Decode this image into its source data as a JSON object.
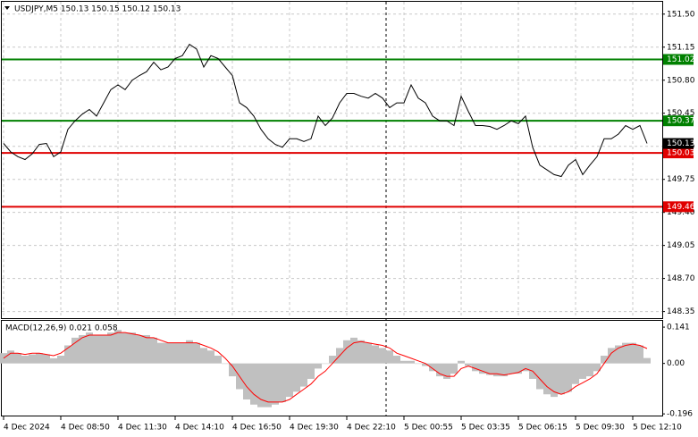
{
  "chart_data": [
    {
      "type": "line",
      "title": "USDJPY,M5  150.13 150.15 150.12 150.13",
      "categories": [
        "4 Dec 2024",
        null,
        null,
        null,
        null,
        null,
        null,
        null,
        "4 Dec 08:50",
        null,
        null,
        null,
        null,
        null,
        null,
        null,
        "4 Dec 11:30",
        null,
        null,
        null,
        null,
        null,
        null,
        null,
        "4 Dec 14:10",
        null,
        null,
        null,
        null,
        null,
        null,
        null,
        "4 Dec 16:50",
        null,
        null,
        null,
        null,
        null,
        null,
        null,
        "4 Dec 19:30",
        null,
        null,
        null,
        null,
        null,
        null,
        null,
        "4 Dec 22:10",
        null,
        null,
        null,
        null,
        null,
        null,
        null,
        "5 Dec 00:55",
        null,
        null,
        null,
        null,
        null,
        null,
        null,
        "5 Dec 03:35",
        null,
        null,
        null,
        null,
        null,
        null,
        null,
        "5 Dec 06:15",
        null,
        null,
        null,
        null,
        null,
        null,
        null,
        "5 Dec 09:30",
        null,
        null,
        null,
        null,
        null,
        null,
        null,
        "5 Dec 12:10",
        null,
        null
      ],
      "values": [
        150.13,
        150.04,
        149.99,
        149.96,
        150.02,
        150.12,
        150.13,
        149.99,
        150.04,
        150.28,
        150.37,
        150.44,
        150.49,
        150.42,
        150.56,
        150.7,
        150.75,
        150.7,
        150.8,
        150.85,
        150.89,
        150.99,
        150.91,
        150.94,
        151.03,
        151.06,
        151.18,
        151.13,
        150.94,
        151.06,
        151.03,
        150.94,
        150.85,
        150.56,
        150.51,
        150.42,
        150.28,
        150.18,
        150.12,
        150.09,
        150.18,
        150.18,
        150.15,
        150.18,
        150.42,
        150.32,
        150.4,
        150.56,
        150.66,
        150.66,
        150.63,
        150.61,
        150.66,
        150.61,
        150.51,
        150.56,
        150.56,
        150.75,
        150.61,
        150.56,
        150.42,
        150.37,
        150.37,
        150.32,
        150.63,
        150.47,
        150.32,
        150.32,
        150.31,
        150.28,
        150.32,
        150.37,
        150.34,
        150.42,
        150.09,
        149.9,
        149.85,
        149.8,
        149.78,
        149.9,
        149.96,
        149.8,
        149.9,
        149.99,
        150.18,
        150.18,
        150.23,
        150.32,
        150.28,
        150.32,
        150.13
      ],
      "color": "#000000",
      "ylim": [
        148.28,
        151.64
      ],
      "yticks": [
        {
          "value": 148.35,
          "label": "148.35"
        },
        {
          "value": 148.7,
          "label": "148.70"
        },
        {
          "value": 149.05,
          "label": "149.05"
        },
        {
          "value": 149.4,
          "label": "149.40"
        },
        {
          "value": 149.75,
          "label": "149.75"
        },
        {
          "value": 150.1,
          "label": "150.10"
        },
        {
          "value": 150.45,
          "label": "150.45"
        },
        {
          "value": 150.8,
          "label": "150.80"
        },
        {
          "value": 151.15,
          "label": "151.15"
        },
        {
          "value": 151.5,
          "label": "151.50"
        }
      ],
      "levels": [
        {
          "value": 151.02,
          "color": "#008000"
        },
        {
          "value": 150.37,
          "color": "#008000"
        },
        {
          "value": 150.03,
          "color": "#e00000"
        },
        {
          "value": 149.46,
          "color": "#e00000"
        }
      ],
      "grid": true
    },
    {
      "type": "macd",
      "title": "MACD(12,26,9) 0.021 0.058",
      "histogram": {
        "color": "#c0c0c0",
        "values": [
          0.04,
          0.05,
          0.04,
          0.03,
          0.035,
          0.04,
          0.035,
          0.02,
          0.03,
          0.07,
          0.1,
          0.11,
          0.12,
          0.11,
          0.11,
          0.12,
          0.13,
          0.12,
          0.12,
          0.11,
          0.11,
          0.1,
          0.08,
          0.08,
          0.08,
          0.08,
          0.09,
          0.08,
          0.06,
          0.05,
          0.03,
          0.0,
          -0.05,
          -0.1,
          -0.14,
          -0.16,
          -0.17,
          -0.17,
          -0.16,
          -0.15,
          -0.13,
          -0.11,
          -0.09,
          -0.06,
          -0.02,
          0.0,
          0.03,
          0.06,
          0.09,
          0.1,
          0.09,
          0.08,
          0.07,
          0.06,
          0.05,
          0.03,
          0.01,
          0.01,
          0.0,
          -0.01,
          -0.03,
          -0.05,
          -0.06,
          -0.04,
          0.01,
          -0.01,
          -0.03,
          -0.04,
          -0.045,
          -0.05,
          -0.05,
          -0.04,
          -0.04,
          -0.03,
          -0.06,
          -0.1,
          -0.12,
          -0.13,
          -0.12,
          -0.11,
          -0.08,
          -0.06,
          -0.05,
          -0.03,
          0.03,
          0.06,
          0.07,
          0.08,
          0.08,
          0.07,
          0.021
        ]
      },
      "signal": {
        "color": "#ff0000",
        "values": [
          0.02,
          0.04,
          0.04,
          0.035,
          0.04,
          0.04,
          0.035,
          0.03,
          0.04,
          0.06,
          0.08,
          0.1,
          0.11,
          0.11,
          0.11,
          0.11,
          0.12,
          0.12,
          0.115,
          0.11,
          0.1,
          0.1,
          0.09,
          0.08,
          0.08,
          0.08,
          0.08,
          0.08,
          0.07,
          0.06,
          0.045,
          0.02,
          -0.01,
          -0.05,
          -0.09,
          -0.12,
          -0.14,
          -0.15,
          -0.15,
          -0.15,
          -0.14,
          -0.12,
          -0.1,
          -0.08,
          -0.05,
          -0.03,
          0.0,
          0.03,
          0.06,
          0.08,
          0.085,
          0.08,
          0.075,
          0.07,
          0.06,
          0.04,
          0.03,
          0.02,
          0.01,
          0.0,
          -0.02,
          -0.04,
          -0.05,
          -0.05,
          -0.02,
          -0.01,
          -0.02,
          -0.03,
          -0.04,
          -0.04,
          -0.045,
          -0.04,
          -0.035,
          -0.02,
          -0.03,
          -0.06,
          -0.09,
          -0.11,
          -0.12,
          -0.11,
          -0.09,
          -0.075,
          -0.06,
          -0.04,
          0.0,
          0.04,
          0.06,
          0.07,
          0.075,
          0.07,
          0.058
        ]
      },
      "ylim": [
        -0.206,
        0.169
      ],
      "yticks": [
        -0.196,
        {
          "value": 0,
          "label": "0.00"
        },
        0.141
      ]
    }
  ]
}
